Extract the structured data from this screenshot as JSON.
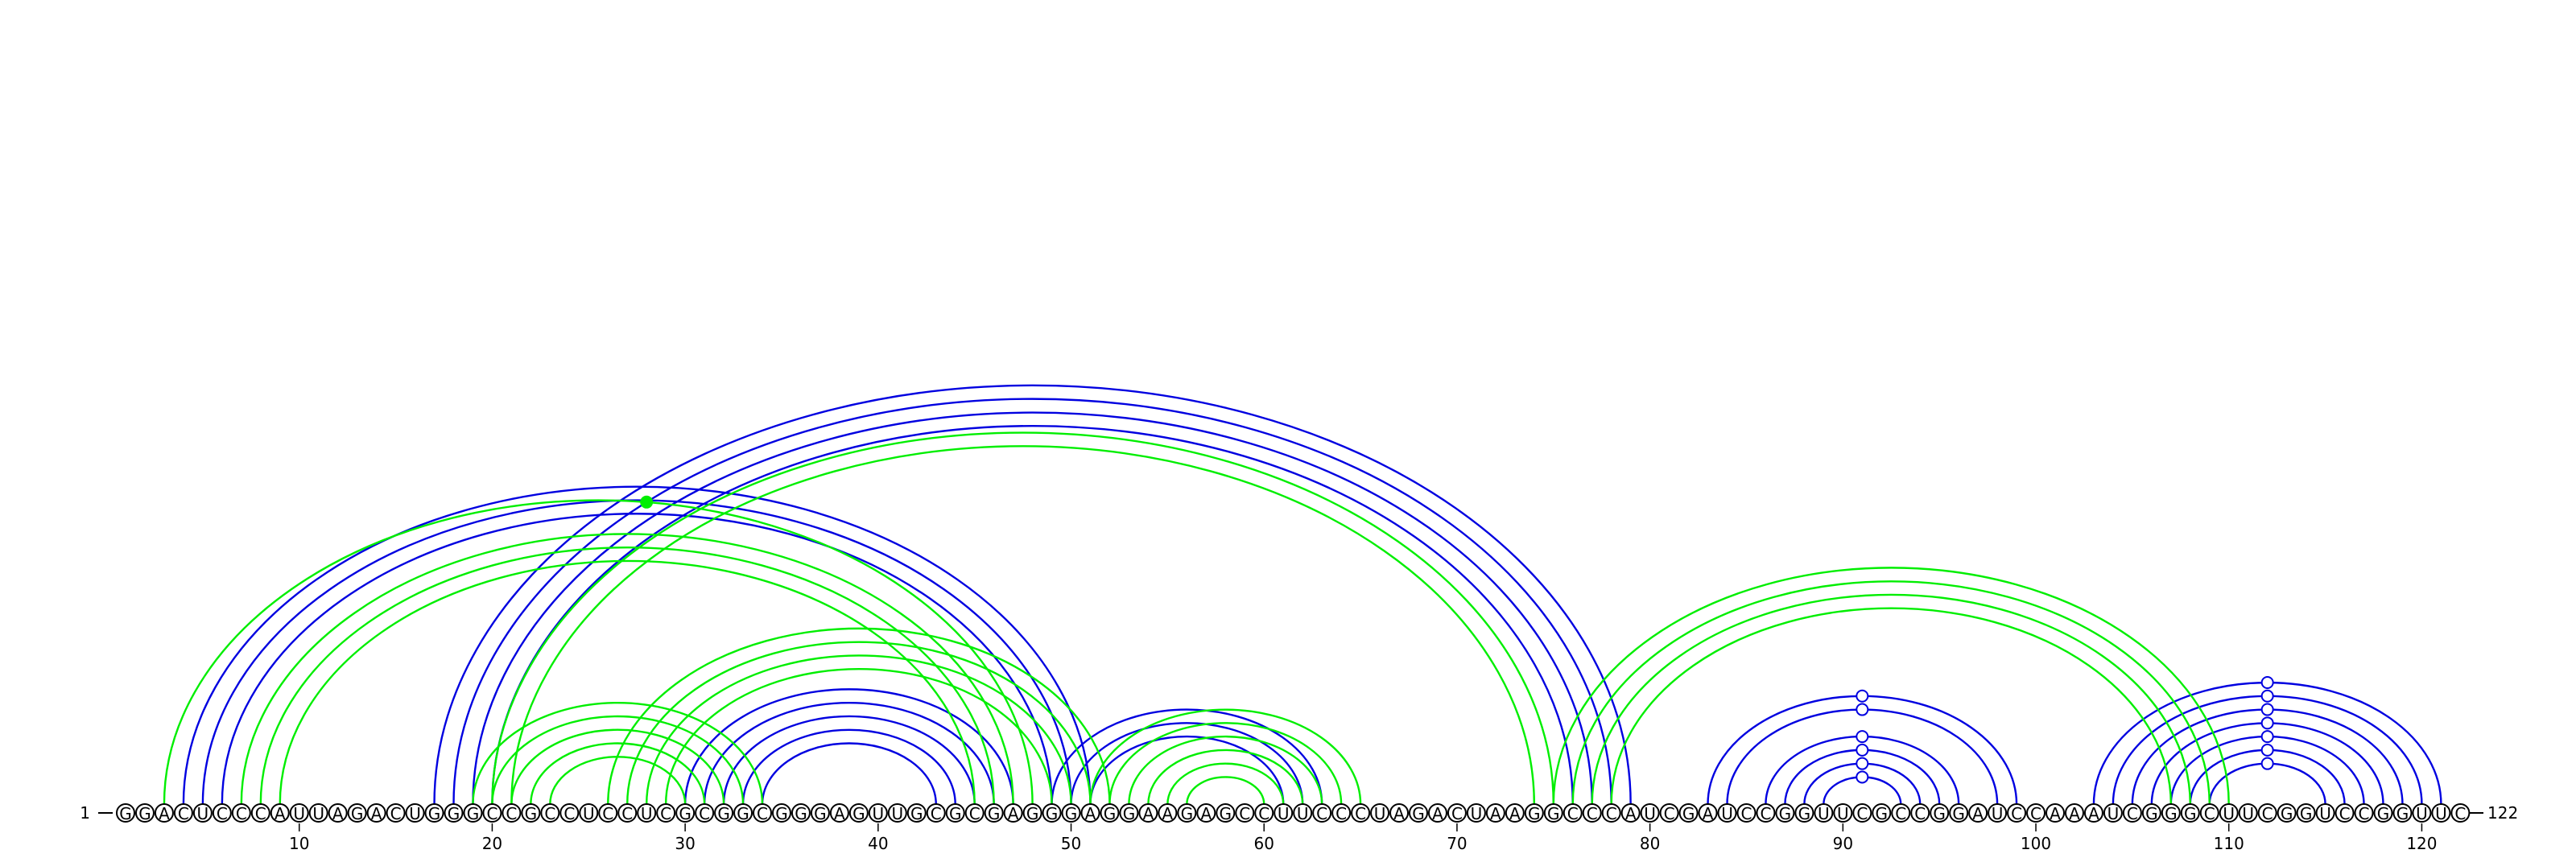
{
  "sequence": "GGACUCCCAUUAGACUGGGCCGCCUCCUCGCGGCGGGAGUUGCGCGAGGGAGGAAGAGCCUUCCCUAGACUAAGGCCCAUCGAUCCGGUUCGCCGGAUCCAAAUCGGGCUUCGGUCCGGUUC",
  "start_label": "1",
  "end_label": "122",
  "ticks": [
    10,
    20,
    30,
    40,
    50,
    60,
    70,
    80,
    90,
    100,
    110,
    120
  ],
  "colors": {
    "upper": "#0000e0",
    "lower": "#00ee00"
  },
  "pairs": {
    "upper": [
      [
        4,
        51
      ],
      [
        5,
        50
      ],
      [
        6,
        49
      ],
      [
        17,
        79
      ],
      [
        18,
        78
      ],
      [
        19,
        77
      ],
      [
        20,
        76
      ],
      [
        30,
        47
      ],
      [
        31,
        46
      ],
      [
        32,
        45
      ],
      [
        33,
        44
      ],
      [
        34,
        43
      ],
      [
        49,
        63
      ],
      [
        50,
        62
      ],
      [
        51,
        61
      ],
      [
        83,
        99
      ],
      [
        84,
        98
      ],
      [
        86,
        96
      ],
      [
        87,
        95
      ],
      [
        88,
        94
      ],
      [
        89,
        93
      ],
      [
        103,
        121
      ],
      [
        104,
        120
      ],
      [
        105,
        119
      ],
      [
        106,
        118
      ],
      [
        107,
        117
      ],
      [
        108,
        116
      ],
      [
        109,
        115
      ]
    ],
    "lower": [
      [
        3,
        48
      ],
      [
        7,
        47
      ],
      [
        8,
        46
      ],
      [
        9,
        45
      ],
      [
        19,
        34
      ],
      [
        20,
        33
      ],
      [
        21,
        32
      ],
      [
        22,
        31
      ],
      [
        23,
        30
      ],
      [
        26,
        52
      ],
      [
        27,
        51
      ],
      [
        28,
        50
      ],
      [
        29,
        49
      ],
      [
        20,
        75
      ],
      [
        21,
        74
      ],
      [
        51,
        65
      ],
      [
        52,
        64
      ],
      [
        53,
        63
      ],
      [
        54,
        62
      ],
      [
        55,
        61
      ],
      [
        56,
        60
      ],
      [
        75,
        110
      ],
      [
        76,
        109
      ],
      [
        77,
        108
      ],
      [
        78,
        107
      ]
    ]
  },
  "markers": [
    {
      "kind": "filled",
      "group": "lower",
      "base": 28
    },
    {
      "kind": "hollow",
      "group": "upper",
      "base": 91
    },
    {
      "kind": "hollow",
      "group": "upper",
      "base": 112
    }
  ]
}
